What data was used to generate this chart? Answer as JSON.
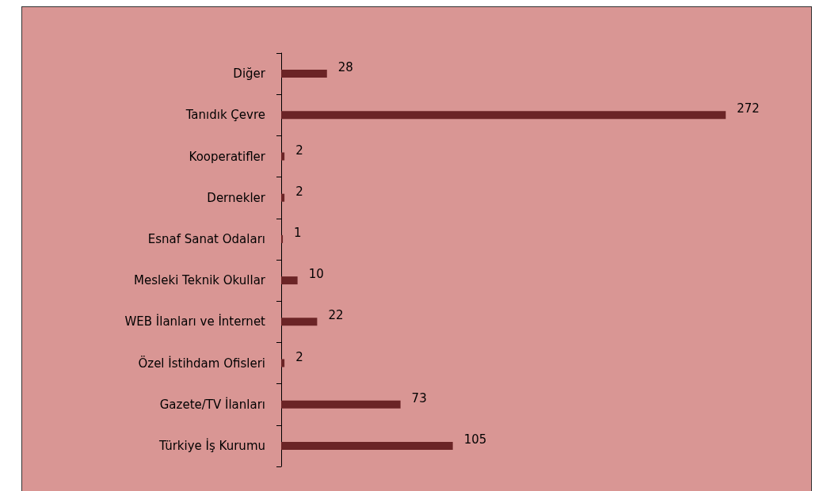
{
  "chart_data": {
    "type": "bar",
    "orientation": "horizontal",
    "categories": [
      "Diğer",
      "Tanıdık Çevre",
      "Kooperatifler",
      "Dernekler",
      "Esnaf Sanat Odaları",
      "Mesleki Teknik Okullar",
      "WEB İlanları ve İnternet",
      "Özel İstihdam Ofisleri",
      "Gazete/TV İlanları",
      "Türkiye İş Kurumu"
    ],
    "values": [
      28,
      272,
      2,
      2,
      1,
      10,
      22,
      2,
      73,
      105
    ],
    "color": "#6b2426",
    "data_labels": true
  }
}
